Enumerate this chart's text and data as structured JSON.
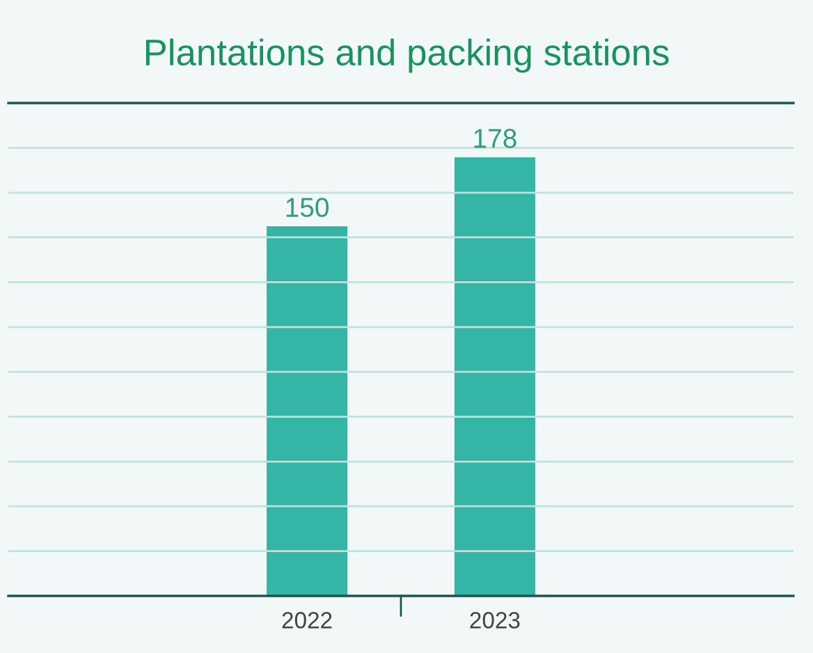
{
  "chart_data": {
    "type": "bar",
    "title": "Plantations and packing stations",
    "categories": [
      "2022",
      "2023"
    ],
    "values": [
      150,
      178
    ],
    "color": "#35b5a5",
    "data_labels": true,
    "ylim": [
      0,
      200
    ],
    "yticks": [
      {
        "value": 18.2,
        "label": null
      },
      {
        "value": 36.4,
        "label": null
      },
      {
        "value": 54.5,
        "label": null
      },
      {
        "value": 72.7,
        "label": null
      },
      {
        "value": 90.9,
        "label": null
      },
      {
        "value": 109.1,
        "label": null
      },
      {
        "value": 127.3,
        "label": null
      },
      {
        "value": 145.5,
        "label": null
      },
      {
        "value": 163.6,
        "label": null
      },
      {
        "value": 181.8,
        "label": null
      }
    ],
    "tick_labels": "x",
    "grid": "y"
  }
}
